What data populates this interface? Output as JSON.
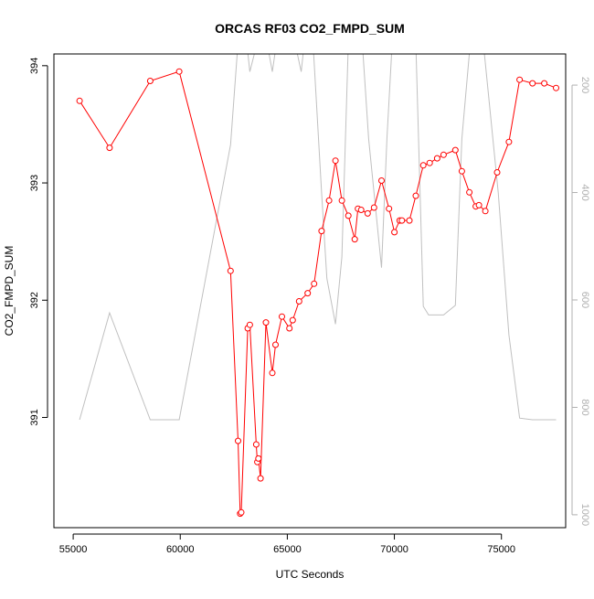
{
  "chart_data": {
    "type": "line",
    "title": "ORCAS RF03 CO2_FMPD_SUM",
    "xlabel": "UTC Seconds",
    "ylabel": "CO2_FMPD_SUM",
    "xlim": [
      54100,
      78000
    ],
    "ylim": [
      390.06,
      394.1
    ],
    "y2lim": [
      1024,
      142
    ],
    "y2_reversed": true,
    "grid": false,
    "x_ticks": [
      55000,
      60000,
      65000,
      70000,
      75000
    ],
    "x_tick_labels": [
      "55000",
      "60000",
      "65000",
      "70000",
      "75000"
    ],
    "y_ticks": [
      391,
      392,
      393,
      394
    ],
    "y_tick_labels": [
      "391",
      "392",
      "393",
      "394"
    ],
    "y2_ticks": [
      200,
      400,
      600,
      800,
      1000
    ],
    "y2_tick_labels": [
      "200",
      "400",
      "600",
      "800",
      "1000"
    ],
    "colors": {
      "primary": "#ff0000",
      "secondary": "#c0c0c0",
      "axis": "#000000",
      "y2_axis": "#b0b0b0"
    },
    "series": [
      {
        "axis": "left",
        "color": "#ff0000",
        "markers": "open-circle",
        "x": [
          55300,
          56700,
          58600,
          59950,
          62350,
          62700,
          62800,
          62850,
          63150,
          63250,
          63550,
          63600,
          63650,
          63750,
          64000,
          64300,
          64450,
          64750,
          65100,
          65250,
          65550,
          65950,
          66250,
          66600,
          66950,
          67250,
          67550,
          67850,
          68150,
          68300,
          68450,
          68750,
          69050,
          69400,
          69750,
          70000,
          70250,
          70350,
          70700,
          71000,
          71350,
          71650,
          72000,
          72300,
          72850,
          73150,
          73500,
          73800,
          73950,
          74250,
          74800,
          75350,
          75850,
          76450,
          77000,
          77550
        ],
        "y": [
          393.7,
          393.3,
          393.87,
          393.95,
          392.25,
          390.8,
          390.18,
          390.19,
          391.76,
          391.79,
          390.77,
          390.62,
          390.65,
          390.48,
          391.81,
          391.38,
          391.62,
          391.86,
          391.76,
          391.83,
          391.99,
          392.06,
          392.14,
          392.59,
          392.85,
          393.19,
          392.85,
          392.72,
          392.52,
          392.78,
          392.77,
          392.74,
          392.79,
          393.02,
          392.78,
          392.58,
          392.68,
          392.68,
          392.68,
          392.89,
          393.15,
          393.17,
          393.21,
          393.24,
          393.28,
          393.1,
          392.92,
          392.8,
          392.81,
          392.76,
          393.09,
          393.35,
          393.88,
          393.85,
          393.85,
          393.81
        ]
      },
      {
        "axis": "right",
        "color": "#c0c0c0",
        "markers": "none",
        "x": [
          55300,
          56700,
          58600,
          59950,
          62350,
          62700,
          62800,
          62850,
          63100,
          63250,
          63600,
          63750,
          64050,
          64300,
          64500,
          64750,
          64800,
          65050,
          65350,
          65650,
          65800,
          66200,
          66600,
          66850,
          67250,
          67550,
          67850,
          68050,
          68300,
          68500,
          68800,
          69400,
          69650,
          69900,
          70000,
          70300,
          70800,
          71000,
          71350,
          71600,
          72300,
          72850,
          73150,
          73550,
          73850,
          74150,
          74850,
          75350,
          75850,
          76450,
          77550
        ],
        "y": [
          823,
          624,
          823,
          823,
          311,
          120,
          120,
          120,
          120,
          175,
          120,
          120,
          120,
          175,
          120,
          120,
          120,
          120,
          120,
          175,
          120,
          120,
          400,
          560,
          645,
          520,
          120,
          120,
          120,
          120,
          300,
          540,
          300,
          120,
          120,
          120,
          120,
          120,
          612,
          628,
          628,
          610,
          300,
          120,
          120,
          120,
          400,
          665,
          820,
          823,
          823
        ]
      }
    ]
  }
}
